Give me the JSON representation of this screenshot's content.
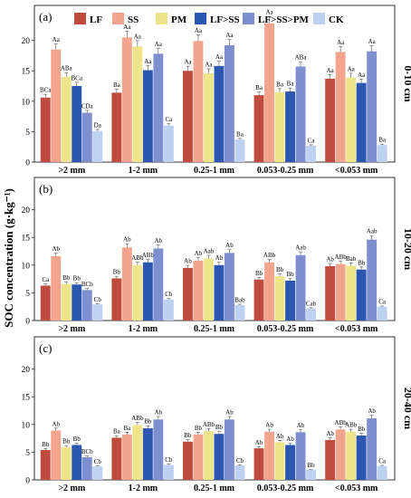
{
  "chart_data": {
    "type": "bar",
    "ylabel": "SOC concentration (g·kg⁻¹)",
    "ylim": [
      0,
      25
    ],
    "yticks": [
      0,
      5,
      10,
      15,
      20
    ],
    "legend_placement": "top",
    "series_names": [
      "LF",
      "SS",
      "PM",
      "LF>SS",
      "LF>SS>PM",
      "CK"
    ],
    "series_colors": [
      "#bf4b3f",
      "#f2a48c",
      "#eee58a",
      "#2b57b0",
      "#7e8fd0",
      "#bcd2f0"
    ],
    "categories": [
      ">2 mm",
      "1-2 mm",
      "0.25-1 mm",
      "0.053-0.25 mm",
      "<0.053 mm"
    ],
    "panels": [
      {
        "tag": "(a)",
        "depth": "0-10 cm",
        "values": [
          [
            10.6,
            18.5,
            14.0,
            12.5,
            8.1,
            5.1
          ],
          [
            11.4,
            20.5,
            19.0,
            15.1,
            17.8,
            6.0
          ],
          [
            15.0,
            19.9,
            14.6,
            15.8,
            19.2,
            3.7
          ],
          [
            11.0,
            22.8,
            11.5,
            11.6,
            15.7,
            2.7
          ],
          [
            13.7,
            18.1,
            13.9,
            13.0,
            18.2,
            2.8
          ]
        ],
        "labels": [
          [
            "BCa",
            "Aa",
            "ABa",
            "BCa",
            "CDa",
            "Da"
          ],
          [
            "Ba",
            "Aa",
            "Aa",
            "Aa",
            "Aa",
            "Ca"
          ],
          [
            "Aa",
            "Aa",
            "Aa",
            "Aa",
            "Aa",
            "Ba"
          ],
          [
            "Ba",
            "Aa",
            "Ba",
            "Ba",
            "ABa",
            "Ca"
          ],
          [
            "Aa",
            "Aa",
            "Aa",
            "Aa",
            "Aa",
            "Ba"
          ]
        ]
      },
      {
        "tag": "(b)",
        "depth": "10-20 cm",
        "values": [
          [
            6.3,
            11.6,
            6.6,
            6.5,
            5.5,
            2.9
          ],
          [
            7.6,
            13.2,
            10.0,
            10.5,
            13.0,
            3.8
          ],
          [
            9.5,
            10.8,
            11.2,
            10.0,
            12.2,
            2.8
          ],
          [
            7.4,
            10.5,
            8.0,
            7.2,
            11.8,
            2.2
          ],
          [
            9.8,
            10.2,
            9.9,
            9.2,
            14.6,
            2.5
          ]
        ],
        "labels": [
          [
            "Ca",
            "Ab",
            "Bb",
            "Bb",
            "BCb",
            "Cb"
          ],
          [
            "Bb",
            "Ab",
            "ABb",
            "ABb",
            "Ab",
            "Cb"
          ],
          [
            "Ab",
            "Ab",
            "Aab",
            "Ab",
            "Ab",
            "Bab"
          ],
          [
            "Bb",
            "ABb",
            "Bb",
            "Bb",
            "Aab",
            "Cab"
          ],
          [
            "Ab",
            "ABb",
            "Bab",
            "Bb",
            "Aab",
            "Ca"
          ]
        ]
      },
      {
        "tag": "(c)",
        "depth": "20-40 cm",
        "values": [
          [
            5.4,
            8.9,
            5.9,
            6.3,
            4.1,
            2.4
          ],
          [
            7.6,
            8.2,
            9.9,
            9.3,
            10.9,
            2.7
          ],
          [
            6.9,
            8.2,
            8.8,
            8.3,
            10.9,
            2.6
          ],
          [
            5.7,
            8.7,
            6.8,
            6.3,
            8.6,
            1.8
          ],
          [
            7.2,
            9.1,
            8.7,
            8.0,
            11.1,
            2.5
          ]
        ],
        "labels": [
          [
            "Bb",
            "Ab",
            "Bb",
            "Bb",
            "BCb",
            "Cb"
          ],
          [
            "Ba",
            "Ba",
            "ABb",
            "Bb",
            "Ab",
            "Cb"
          ],
          [
            "Bb",
            "Bb",
            "ABb",
            "Bb",
            "Ab",
            "Cb"
          ],
          [
            "Ab",
            "Ab",
            "Ab",
            "Ab",
            "Ab",
            "Bb"
          ],
          [
            "Ab",
            "ABb",
            "ABb",
            "Bb",
            "Ab",
            "Ca"
          ]
        ]
      }
    ]
  }
}
